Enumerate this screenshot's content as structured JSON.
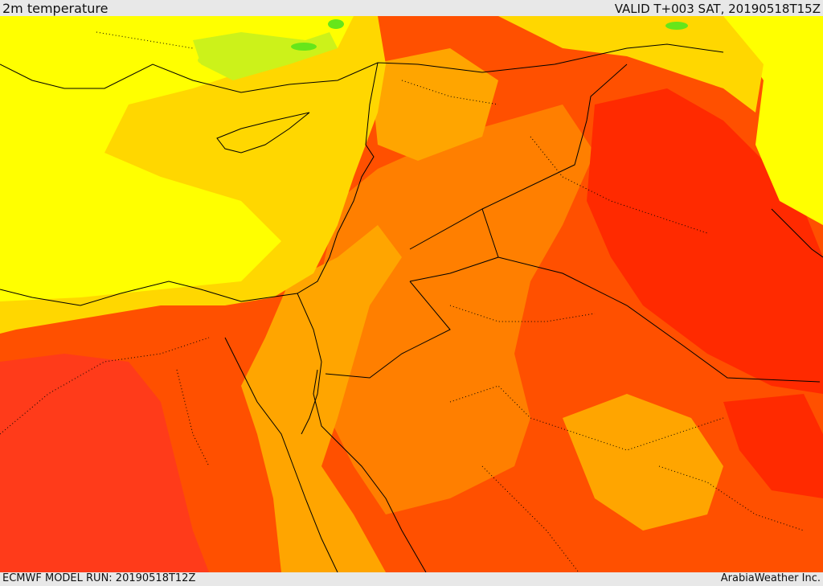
{
  "header": {
    "title": "2m temperature",
    "valid": "VALID T+003 SAT, 20190518T15Z"
  },
  "footer": {
    "model_run": "ECMWF MODEL RUN: 20190518T12Z",
    "credit": "ArabiaWeather Inc."
  },
  "map": {
    "field": "2m temperature",
    "colors": {
      "coolest": "#66e61a",
      "green_yellow": "#ccf21a",
      "yellow": "#ffff00",
      "gold": "#ffd700",
      "amber": "#ffa500",
      "orange": "#ff7f00",
      "red_orange": "#ff5000",
      "red": "#ff2a00",
      "sea_red": "#ff3b1a"
    }
  }
}
